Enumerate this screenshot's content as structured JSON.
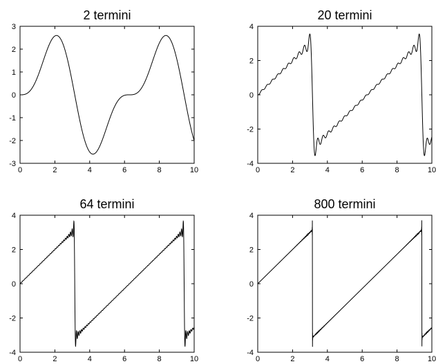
{
  "chart_data": [
    {
      "type": "line",
      "title": "2 termini",
      "xlim": [
        0,
        10
      ],
      "ylim": [
        -3,
        3
      ],
      "xticks": [
        0,
        2,
        4,
        6,
        8,
        10
      ],
      "yticks": [
        -3,
        -2,
        -1,
        0,
        1,
        2,
        3
      ],
      "grid": false,
      "series": [
        {
          "function": "fourier_sawtooth_partial_sum",
          "terms": 2,
          "x_range": [
            0,
            10
          ]
        }
      ]
    },
    {
      "type": "line",
      "title": "20 termini",
      "xlim": [
        0,
        10
      ],
      "ylim": [
        -4,
        4
      ],
      "xticks": [
        0,
        2,
        4,
        6,
        8,
        10
      ],
      "yticks": [
        -4,
        -2,
        0,
        2,
        4
      ],
      "grid": false,
      "series": [
        {
          "function": "fourier_sawtooth_partial_sum",
          "terms": 20,
          "x_range": [
            0,
            10
          ]
        }
      ]
    },
    {
      "type": "line",
      "title": "64 termini",
      "xlim": [
        0,
        10
      ],
      "ylim": [
        -4,
        4
      ],
      "xticks": [
        0,
        2,
        4,
        6,
        8,
        10
      ],
      "yticks": [
        -4,
        -2,
        0,
        2,
        4
      ],
      "grid": false,
      "series": [
        {
          "function": "fourier_sawtooth_partial_sum",
          "terms": 64,
          "x_range": [
            0,
            10
          ]
        }
      ]
    },
    {
      "type": "line",
      "title": "800 termini",
      "xlim": [
        0,
        10
      ],
      "ylim": [
        -4,
        4
      ],
      "xticks": [
        0,
        2,
        4,
        6,
        8,
        10
      ],
      "yticks": [
        -4,
        -2,
        0,
        2,
        4
      ],
      "grid": false,
      "series": [
        {
          "function": "fourier_sawtooth_partial_sum",
          "terms": 800,
          "x_range": [
            0,
            10
          ]
        }
      ]
    }
  ]
}
